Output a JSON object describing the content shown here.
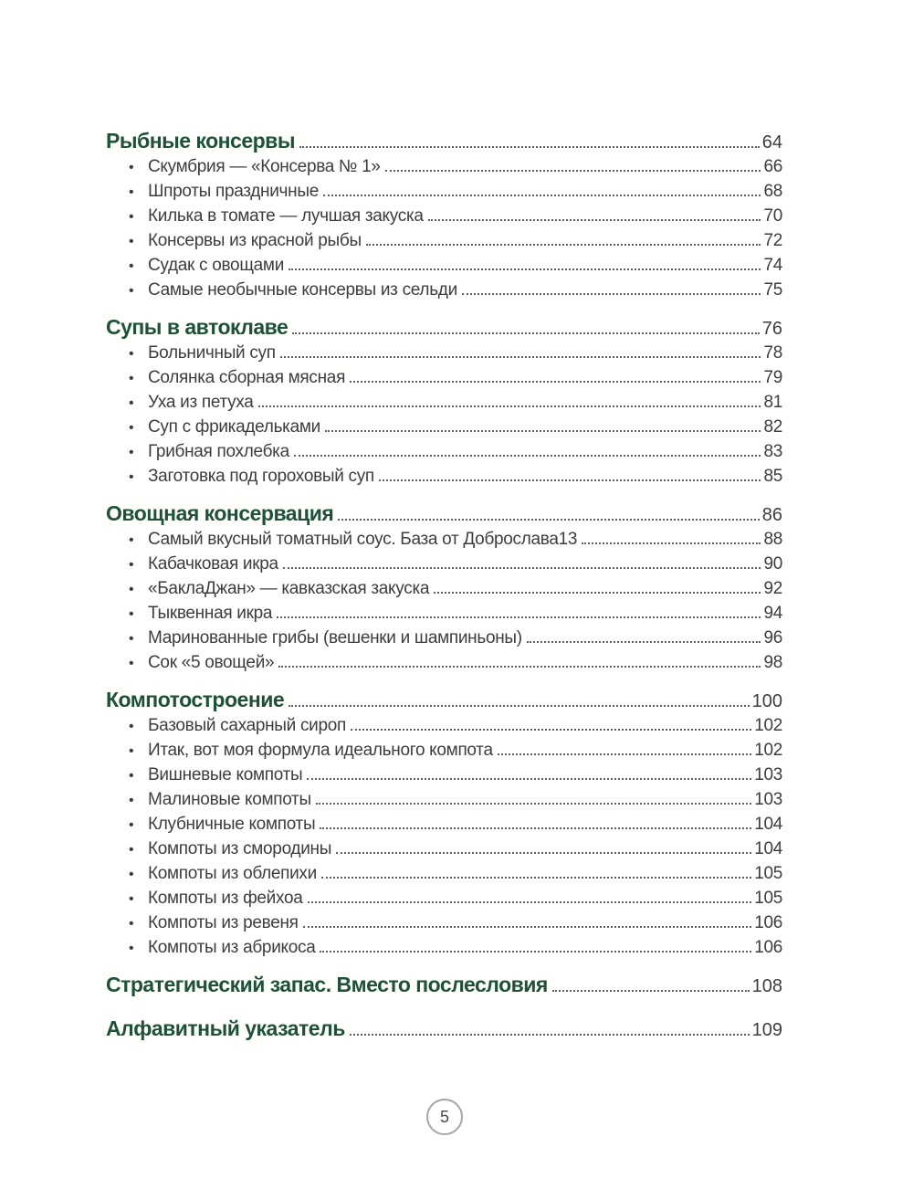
{
  "page": {
    "number": "5",
    "bullet_glyph": "•"
  },
  "colors": {
    "heading_green": "#1e5137",
    "body_text": "#3d3d3d",
    "dot_leader": "#5f5f5f",
    "circle_border": "#a6a6a6"
  },
  "toc": {
    "sections": [
      {
        "title": "Рыбные консервы",
        "page": "64",
        "items": [
          {
            "label": "Скумбрия — «Консерва № 1»",
            "page": "66"
          },
          {
            "label": "Шпроты праздничные",
            "page": "68"
          },
          {
            "label": "Килька в томате — лучшая закуска",
            "page": "70"
          },
          {
            "label": "Консервы из красной рыбы",
            "page": "72"
          },
          {
            "label": "Судак с овощами",
            "page": "74"
          },
          {
            "label": "Самые необычные консервы из сельди",
            "page": "75"
          }
        ]
      },
      {
        "title": "Супы в автоклаве",
        "page": "76",
        "items": [
          {
            "label": "Больничный суп",
            "page": "78"
          },
          {
            "label": "Солянка сборная мясная",
            "page": "79"
          },
          {
            "label": "Уха из петуха",
            "page": "81"
          },
          {
            "label": "Суп с фрикадельками",
            "page": "82"
          },
          {
            "label": "Грибная похлебка",
            "page": "83"
          },
          {
            "label": "Заготовка под гороховый суп",
            "page": "85"
          }
        ]
      },
      {
        "title": "Овощная консервация",
        "page": "86",
        "items": [
          {
            "label": "Самый вкусный томатный соус. База от Доброслава13",
            "page": "88"
          },
          {
            "label": "Кабачковая икра",
            "page": "90"
          },
          {
            "label": "«БаклаДжан» — кавказская закуска",
            "page": "92"
          },
          {
            "label": "Тыквенная икра",
            "page": "94"
          },
          {
            "label": "Маринованные грибы (вешенки и шампиньоны)",
            "page": "96"
          },
          {
            "label": "Сок «5 овощей»",
            "page": "98"
          }
        ]
      },
      {
        "title": "Компотостроение",
        "page": "100",
        "items": [
          {
            "label": "Базовый сахарный сироп",
            "page": "102"
          },
          {
            "label": "Итак, вот моя формула идеального компота",
            "page": "102"
          },
          {
            "label": "Вишневые компоты",
            "page": "103"
          },
          {
            "label": "Малиновые компоты",
            "page": "103"
          },
          {
            "label": "Клубничные компоты",
            "page": "104"
          },
          {
            "label": "Компоты из смородины",
            "page": "104"
          },
          {
            "label": "Компоты из облепихи",
            "page": "105"
          },
          {
            "label": "Компоты из фейхоа",
            "page": "105"
          },
          {
            "label": "Компоты из ревеня",
            "page": "106"
          },
          {
            "label": "Компоты из абрикоса",
            "page": "106"
          }
        ]
      }
    ],
    "standalone": [
      {
        "title": "Стратегический запас. Вместо послесловия",
        "page": "108"
      },
      {
        "title": "Алфавитный указатель",
        "page": "109"
      }
    ]
  }
}
